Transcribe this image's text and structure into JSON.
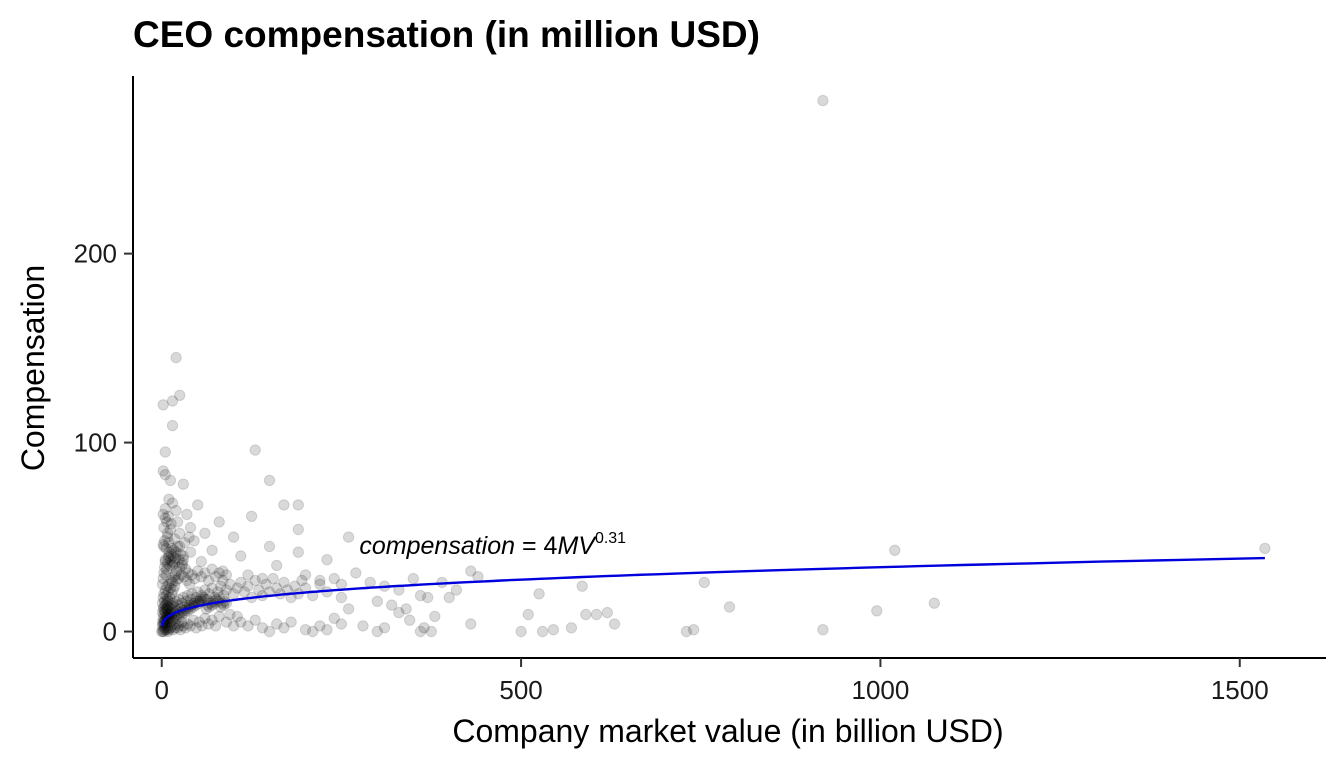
{
  "chart_data": {
    "type": "scatter",
    "title": "CEO compensation (in million USD)",
    "xlabel": "Company market value (in billion USD)",
    "ylabel": "Compensation",
    "xlim": [
      -40,
      1620
    ],
    "ylim": [
      -14,
      294
    ],
    "xticks": [
      0,
      500,
      1000,
      1500
    ],
    "xtick_labels": [
      "0",
      "500",
      "1000",
      "1500"
    ],
    "yticks": [
      0,
      100,
      200
    ],
    "ytick_labels": [
      "0",
      "100",
      "200"
    ],
    "grid": false,
    "legend": "none",
    "point_color": "#000000",
    "point_opacity": 0.15,
    "fit_line_color": "#0000dd",
    "annotation": {
      "text_prefix": "compensation",
      "text_equals": " = 4",
      "text_var": "MV",
      "text_exponent": "0.31",
      "x": 275,
      "y": 41
    },
    "fit": {
      "formula": "compensation = 4MV^0.31",
      "coefficient": 4,
      "exponent": 0.31,
      "x_start": 0.5,
      "x_end": 1535
    },
    "points": [
      [
        920,
        281
      ],
      [
        20,
        145
      ],
      [
        25,
        125
      ],
      [
        15,
        122
      ],
      [
        2,
        120
      ],
      [
        15,
        109
      ],
      [
        5,
        95
      ],
      [
        130,
        96
      ],
      [
        2,
        85
      ],
      [
        5,
        83
      ],
      [
        12,
        80
      ],
      [
        10,
        70
      ],
      [
        15,
        68
      ],
      [
        20,
        64
      ],
      [
        30,
        78
      ],
      [
        150,
        80
      ],
      [
        170,
        67
      ],
      [
        190,
        67
      ],
      [
        125,
        61
      ],
      [
        50,
        67
      ],
      [
        40,
        55
      ],
      [
        80,
        58
      ],
      [
        190,
        54
      ],
      [
        260,
        50
      ],
      [
        5,
        60
      ],
      [
        2,
        62
      ],
      [
        8,
        50
      ],
      [
        3,
        45
      ],
      [
        22,
        58
      ],
      [
        35,
        62
      ],
      [
        45,
        48
      ],
      [
        60,
        52
      ],
      [
        100,
        50
      ],
      [
        110,
        40
      ],
      [
        150,
        45
      ],
      [
        190,
        42
      ],
      [
        230,
        38
      ],
      [
        5,
        38
      ],
      [
        10,
        40
      ],
      [
        15,
        35
      ],
      [
        25,
        45
      ],
      [
        30,
        40
      ],
      [
        40,
        42
      ],
      [
        55,
        37
      ],
      [
        70,
        43
      ],
      [
        85,
        32
      ],
      [
        120,
        30
      ],
      [
        140,
        28
      ],
      [
        160,
        35
      ],
      [
        200,
        30
      ],
      [
        220,
        27
      ],
      [
        250,
        25
      ],
      [
        270,
        31
      ],
      [
        290,
        26
      ],
      [
        310,
        24
      ],
      [
        330,
        22
      ],
      [
        350,
        28
      ],
      [
        370,
        18
      ],
      [
        390,
        26
      ],
      [
        410,
        22
      ],
      [
        430,
        32
      ],
      [
        440,
        29
      ],
      [
        300,
        16
      ],
      [
        320,
        14
      ],
      [
        340,
        12
      ],
      [
        360,
        19
      ],
      [
        380,
        8
      ],
      [
        400,
        18
      ],
      [
        280,
        3
      ],
      [
        300,
        0
      ],
      [
        310,
        2
      ],
      [
        330,
        10
      ],
      [
        345,
        6
      ],
      [
        360,
        0
      ],
      [
        365,
        2
      ],
      [
        375,
        0
      ],
      [
        180,
        5
      ],
      [
        200,
        1
      ],
      [
        210,
        0
      ],
      [
        220,
        3
      ],
      [
        230,
        1
      ],
      [
        240,
        7
      ],
      [
        250,
        4
      ],
      [
        260,
        12
      ],
      [
        150,
        0
      ],
      [
        160,
        4
      ],
      [
        170,
        2
      ],
      [
        120,
        3
      ],
      [
        130,
        6
      ],
      [
        140,
        2
      ],
      [
        100,
        3
      ],
      [
        110,
        5
      ],
      [
        430,
        4
      ],
      [
        500,
        0
      ],
      [
        510,
        9
      ],
      [
        525,
        20
      ],
      [
        530,
        0
      ],
      [
        545,
        1
      ],
      [
        570,
        2
      ],
      [
        585,
        24
      ],
      [
        590,
        9
      ],
      [
        605,
        9
      ],
      [
        620,
        10
      ],
      [
        630,
        4
      ],
      [
        730,
        0
      ],
      [
        740,
        1
      ],
      [
        755,
        26
      ],
      [
        790,
        13
      ],
      [
        920,
        1
      ],
      [
        995,
        11
      ],
      [
        1020,
        43
      ],
      [
        1075,
        15
      ],
      [
        1535,
        44
      ],
      [
        0,
        0
      ],
      [
        1,
        0
      ],
      [
        2,
        1
      ],
      [
        3,
        0
      ],
      [
        4,
        2
      ],
      [
        5,
        1
      ],
      [
        6,
        3
      ],
      [
        7,
        1
      ],
      [
        8,
        2
      ],
      [
        9,
        0
      ],
      [
        10,
        1
      ],
      [
        12,
        2
      ],
      [
        14,
        3
      ],
      [
        16,
        1
      ],
      [
        18,
        2
      ],
      [
        20,
        4
      ],
      [
        22,
        2
      ],
      [
        24,
        3
      ],
      [
        26,
        1
      ],
      [
        28,
        5
      ],
      [
        30,
        3
      ],
      [
        33,
        2
      ],
      [
        36,
        4
      ],
      [
        40,
        3
      ],
      [
        44,
        6
      ],
      [
        48,
        2
      ],
      [
        52,
        5
      ],
      [
        56,
        3
      ],
      [
        60,
        7
      ],
      [
        65,
        4
      ],
      [
        70,
        6
      ],
      [
        75,
        3
      ],
      [
        80,
        8
      ],
      [
        90,
        5
      ],
      [
        95,
        9
      ],
      [
        105,
        8
      ],
      [
        1,
        5
      ],
      [
        2,
        7
      ],
      [
        3,
        9
      ],
      [
        4,
        6
      ],
      [
        5,
        10
      ],
      [
        6,
        8
      ],
      [
        7,
        12
      ],
      [
        8,
        9
      ],
      [
        9,
        11
      ],
      [
        10,
        13
      ],
      [
        11,
        7
      ],
      [
        12,
        10
      ],
      [
        13,
        14
      ],
      [
        14,
        9
      ],
      [
        15,
        12
      ],
      [
        16,
        15
      ],
      [
        17,
        10
      ],
      [
        18,
        13
      ],
      [
        19,
        16
      ],
      [
        20,
        11
      ],
      [
        22,
        14
      ],
      [
        24,
        17
      ],
      [
        26,
        12
      ],
      [
        28,
        15
      ],
      [
        30,
        18
      ],
      [
        32,
        13
      ],
      [
        34,
        16
      ],
      [
        36,
        19
      ],
      [
        38,
        14
      ],
      [
        40,
        17
      ],
      [
        42,
        20
      ],
      [
        45,
        15
      ],
      [
        48,
        18
      ],
      [
        50,
        21
      ],
      [
        53,
        16
      ],
      [
        56,
        19
      ],
      [
        60,
        22
      ],
      [
        63,
        17
      ],
      [
        66,
        20
      ],
      [
        70,
        23
      ],
      [
        74,
        18
      ],
      [
        78,
        21
      ],
      [
        82,
        24
      ],
      [
        86,
        19
      ],
      [
        90,
        22
      ],
      [
        95,
        25
      ],
      [
        100,
        20
      ],
      [
        105,
        23
      ],
      [
        110,
        26
      ],
      [
        115,
        21
      ],
      [
        120,
        24
      ],
      [
        125,
        18
      ],
      [
        130,
        27
      ],
      [
        135,
        22
      ],
      [
        140,
        19
      ],
      [
        145,
        25
      ],
      [
        150,
        21
      ],
      [
        155,
        28
      ],
      [
        160,
        23
      ],
      [
        165,
        20
      ],
      [
        170,
        26
      ],
      [
        175,
        22
      ],
      [
        180,
        18
      ],
      [
        185,
        24
      ],
      [
        190,
        20
      ],
      [
        195,
        27
      ],
      [
        200,
        23
      ],
      [
        210,
        19
      ],
      [
        220,
        25
      ],
      [
        230,
        21
      ],
      [
        240,
        28
      ],
      [
        250,
        18
      ],
      [
        1,
        15
      ],
      [
        2,
        18
      ],
      [
        3,
        20
      ],
      [
        4,
        16
      ],
      [
        5,
        22
      ],
      [
        6,
        19
      ],
      [
        7,
        24
      ],
      [
        8,
        17
      ],
      [
        9,
        21
      ],
      [
        10,
        25
      ],
      [
        11,
        18
      ],
      [
        12,
        23
      ],
      [
        13,
        27
      ],
      [
        14,
        20
      ],
      [
        15,
        26
      ],
      [
        16,
        22
      ],
      [
        17,
        29
      ],
      [
        18,
        24
      ],
      [
        19,
        30
      ],
      [
        20,
        27
      ],
      [
        21,
        32
      ],
      [
        23,
        28
      ],
      [
        25,
        34
      ],
      [
        27,
        30
      ],
      [
        29,
        36
      ],
      [
        31,
        29
      ],
      [
        33,
        33
      ],
      [
        35,
        27
      ],
      [
        37,
        31
      ],
      [
        39,
        25
      ],
      [
        42,
        30
      ],
      [
        46,
        28
      ],
      [
        50,
        32
      ],
      [
        55,
        29
      ],
      [
        60,
        31
      ],
      [
        65,
        27
      ],
      [
        70,
        33
      ],
      [
        75,
        29
      ],
      [
        80,
        31
      ],
      [
        85,
        27
      ],
      [
        90,
        30
      ],
      [
        1,
        25
      ],
      [
        2,
        28
      ],
      [
        3,
        31
      ],
      [
        4,
        34
      ],
      [
        5,
        37
      ],
      [
        6,
        30
      ],
      [
        7,
        33
      ],
      [
        8,
        36
      ],
      [
        9,
        39
      ],
      [
        10,
        42
      ],
      [
        11,
        35
      ],
      [
        12,
        38
      ],
      [
        13,
        41
      ],
      [
        14,
        44
      ],
      [
        15,
        37
      ],
      [
        16,
        40
      ],
      [
        17,
        43
      ],
      [
        18,
        36
      ],
      [
        19,
        39
      ],
      [
        20,
        42
      ],
      [
        22,
        45
      ],
      [
        24,
        38
      ],
      [
        26,
        41
      ],
      [
        28,
        35
      ],
      [
        30,
        38
      ],
      [
        1,
        3
      ],
      [
        2,
        4
      ],
      [
        3,
        5
      ],
      [
        4,
        4
      ],
      [
        5,
        6
      ],
      [
        6,
        5
      ],
      [
        7,
        7
      ],
      [
        8,
        6
      ],
      [
        9,
        8
      ],
      [
        10,
        7
      ],
      [
        1,
        10
      ],
      [
        2,
        12
      ],
      [
        3,
        13
      ],
      [
        4,
        11
      ],
      [
        5,
        14
      ],
      [
        6,
        12
      ],
      [
        7,
        15
      ],
      [
        8,
        13
      ],
      [
        9,
        16
      ],
      [
        10,
        9
      ],
      [
        12,
        5
      ],
      [
        14,
        7
      ],
      [
        16,
        6
      ],
      [
        18,
        8
      ],
      [
        20,
        7
      ],
      [
        22,
        9
      ],
      [
        24,
        8
      ],
      [
        26,
        10
      ],
      [
        28,
        9
      ],
      [
        30,
        11
      ],
      [
        32,
        10
      ],
      [
        34,
        12
      ],
      [
        36,
        11
      ],
      [
        38,
        13
      ],
      [
        40,
        12
      ],
      [
        42,
        14
      ],
      [
        44,
        13
      ],
      [
        46,
        15
      ],
      [
        48,
        14
      ],
      [
        50,
        16
      ],
      [
        52,
        15
      ],
      [
        54,
        17
      ],
      [
        56,
        16
      ],
      [
        58,
        18
      ],
      [
        60,
        17
      ],
      [
        62,
        12
      ],
      [
        64,
        14
      ],
      [
        66,
        13
      ],
      [
        68,
        15
      ],
      [
        70,
        14
      ],
      [
        72,
        16
      ],
      [
        74,
        15
      ],
      [
        76,
        17
      ],
      [
        78,
        16
      ],
      [
        80,
        18
      ],
      [
        82,
        13
      ],
      [
        84,
        15
      ],
      [
        86,
        14
      ],
      [
        88,
        16
      ],
      [
        90,
        15
      ],
      [
        2,
        46
      ],
      [
        4,
        48
      ],
      [
        6,
        44
      ],
      [
        8,
        52
      ],
      [
        10,
        47
      ],
      [
        3,
        55
      ],
      [
        7,
        58
      ],
      [
        12,
        54
      ],
      [
        18,
        49
      ],
      [
        25,
        52
      ],
      [
        32,
        47
      ],
      [
        38,
        50
      ],
      [
        5,
        65
      ],
      [
        9,
        61
      ],
      [
        13,
        57
      ]
    ]
  }
}
